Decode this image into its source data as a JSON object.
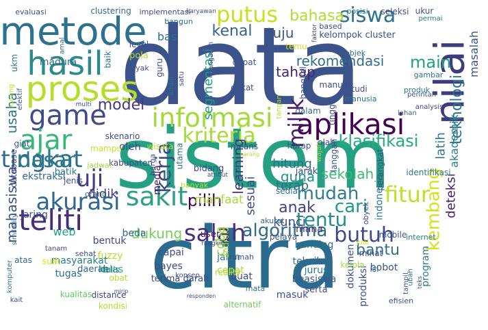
{
  "colors": {
    "background": "#ffffff",
    "palette": [
      "#440154",
      "#482878",
      "#3e4a89",
      "#31688e",
      "#26828e",
      "#1f9e89",
      "#35b779",
      "#6ece58",
      "#b5de2b",
      "#fde725"
    ]
  },
  "words": [
    {
      "text": "sistem",
      "color": "#26a083"
    },
    {
      "text": "data",
      "color": "#3b528b"
    },
    {
      "text": "citra",
      "color": "#2a6b8e"
    },
    {
      "text": "metode",
      "color": "#2c718e"
    },
    {
      "text": "hasil",
      "color": "#2c8a8c"
    },
    {
      "text": "proses",
      "color": "#b5de2b"
    },
    {
      "text": "nilai",
      "color": "#3b3d7e"
    },
    {
      "text": "aplikasi",
      "color": "#440154"
    },
    {
      "text": "game",
      "color": "#3e4a89"
    },
    {
      "text": "informasi",
      "color": "#a2da37"
    },
    {
      "text": "ajar",
      "color": "#37b878"
    },
    {
      "text": "teliti",
      "color": "#472c7a"
    },
    {
      "text": "tingkat",
      "color": "#2e6e8e"
    },
    {
      "text": "akurasi",
      "color": "#31688e"
    },
    {
      "text": "sakit",
      "color": "#2e9d8a"
    },
    {
      "text": "salah",
      "color": "#472d7b"
    },
    {
      "text": "uji",
      "color": "#443b84"
    },
    {
      "text": "dasar",
      "color": "#2a768e"
    },
    {
      "text": "putus",
      "color": "#c8e020"
    },
    {
      "text": "siswa",
      "color": "#2c728e"
    },
    {
      "text": "kerja",
      "color": "#3e4989"
    },
    {
      "text": "milik",
      "color": "#48186a"
    },
    {
      "text": "kriteria",
      "color": "#a5db36"
    },
    {
      "text": "butuh",
      "color": "#3f4788"
    },
    {
      "text": "fitur",
      "color": "#c2df23"
    },
    {
      "text": "tentu",
      "color": "#228c8d"
    },
    {
      "text": "algoritma",
      "color": "#2f6b8e"
    },
    {
      "text": "pilih",
      "color": "#440154"
    },
    {
      "text": "mudah",
      "color": "#2c7e8e"
    },
    {
      "text": "cari",
      "color": "#1f978b"
    },
    {
      "text": "kembang",
      "color": "#d5e21a"
    },
    {
      "text": "klasifikasi",
      "color": "#25ab82"
    },
    {
      "text": "model",
      "color": "#453781"
    },
    {
      "text": "bahasa",
      "color": "#b0dd2f"
    },
    {
      "text": "kenal",
      "color": "#32648e"
    },
    {
      "text": "tuju",
      "color": "#3b528b"
    },
    {
      "text": "main",
      "color": "#1fa187"
    },
    {
      "text": "rekomendasi",
      "color": "#2f6c8e"
    },
    {
      "text": "tahap",
      "color": "#482576"
    },
    {
      "text": "teknologi",
      "color": "#2b748e"
    },
    {
      "text": "akademik",
      "color": "#26818e"
    },
    {
      "text": "masalah",
      "color": "#3b528b"
    },
    {
      "text": "dukung",
      "color": "#75d054"
    },
    {
      "text": "bantu",
      "color": "#2d718e"
    },
    {
      "text": "guna",
      "color": "#20928c"
    },
    {
      "text": "sekolah",
      "color": "#3aba76"
    },
    {
      "text": "hitung",
      "color": "#2e6f8e"
    },
    {
      "text": "terap",
      "color": "#306a8e"
    },
    {
      "text": "learning",
      "color": "#46337f"
    },
    {
      "text": "sesuai",
      "color": "#3e4c8a"
    },
    {
      "text": "segmentasi",
      "color": "#1f998a"
    },
    {
      "text": "anak",
      "color": "#424086"
    },
    {
      "text": "kunci",
      "color": "#3b528b"
    },
    {
      "text": "manfaat",
      "color": "#a8db34"
    },
    {
      "text": "coba",
      "color": "#a0da39"
    },
    {
      "text": "latih",
      "color": "#2c738e"
    },
    {
      "text": "deteksi",
      "color": "#481a6c"
    },
    {
      "text": "usaha",
      "color": "#2b758e"
    },
    {
      "text": "mahasiswa",
      "color": "#3b528b"
    },
    {
      "text": "web",
      "color": "#1fa287"
    },
    {
      "text": "didik",
      "color": "#443983"
    },
    {
      "text": "media",
      "color": "#481668"
    },
    {
      "text": "madura",
      "color": "#2f6b8e"
    },
    {
      "text": "bas",
      "color": "#2d708e"
    },
    {
      "text": "ekstraksi",
      "color": "#31668e"
    },
    {
      "text": "oleh",
      "color": "#3f4889"
    },
    {
      "text": "jaring",
      "color": "#3b528b"
    },
    {
      "text": "bentuk",
      "color": "#3e4a89"
    },
    {
      "text": "fuzzy",
      "color": "#b2dd2d"
    },
    {
      "text": "tugas",
      "color": "#2e6e8e"
    },
    {
      "text": "masyarakat",
      "color": "#287d8e"
    },
    {
      "text": "kelas",
      "color": "#27ad81"
    },
    {
      "text": "kualitas",
      "color": "#5cc863"
    },
    {
      "text": "distance",
      "color": "#3e4989"
    },
    {
      "text": "dokumen",
      "color": "#3b528b"
    },
    {
      "text": "indonesia",
      "color": "#2a788e"
    },
    {
      "text": "banding",
      "color": "#2d708e"
    },
    {
      "text": "mana",
      "color": "#472c7a"
    },
    {
      "text": "jalan",
      "color": "#2c728e"
    },
    {
      "text": "buat",
      "color": "#3e4a89"
    },
    {
      "text": "teknik",
      "color": "#31688e"
    },
    {
      "text": "jurus",
      "color": "#2a788e"
    },
    {
      "text": "bobot",
      "color": "#3b528b"
    },
    {
      "text": "bayes",
      "color": "#3e4a89"
    },
    {
      "text": "daerah",
      "color": "#31688e"
    },
    {
      "text": "terima darah",
      "color": "#3e4989"
    },
    {
      "text": "cepat",
      "color": "#aadc32"
    },
    {
      "text": "beasiswa",
      "color": "#38588c"
    },
    {
      "text": "beda",
      "color": "#31688e"
    },
    {
      "text": "capai",
      "color": "#3e4a89"
    },
    {
      "text": "program",
      "color": "#2a788e"
    },
    {
      "text": "produksi",
      "color": "#3b528b"
    },
    {
      "text": "kelola",
      "color": "#9bd93c"
    },
    {
      "text": "serta",
      "color": "#3e4a89"
    },
    {
      "text": "user",
      "color": "#481b6d"
    },
    {
      "text": "reality",
      "color": "#b5de2b"
    },
    {
      "text": "masuk",
      "color": "#3b528b"
    },
    {
      "text": "alternatif",
      "color": "#6ccd5a"
    },
    {
      "text": "kondisi",
      "color": "#b5de2b"
    },
    {
      "text": "efisien",
      "color": "#3b528b"
    },
    {
      "text": "komputer",
      "color": "#2c728e"
    },
    {
      "text": "kait",
      "color": "#3b528b"
    },
    {
      "text": "sulit",
      "color": "#d8e219"
    },
    {
      "text": "atas",
      "color": "#31688e"
    },
    {
      "text": "tanam",
      "color": "#3e4a89"
    },
    {
      "text": "similarity",
      "color": "#2c728e"
    },
    {
      "text": "sehat",
      "color": "#3b528b"
    },
    {
      "text": "tulis",
      "color": "#2a788e"
    },
    {
      "text": "obat",
      "color": "#b5de2b"
    },
    {
      "text": "rangking",
      "color": "#3e4a89"
    },
    {
      "text": "pelaya",
      "color": "#3b528b"
    },
    {
      "text": "juai",
      "color": "#d5e21a"
    },
    {
      "text": "android",
      "color": "#a0da39"
    },
    {
      "text": "akurat",
      "color": "#31688e"
    },
    {
      "text": "obyek",
      "color": "#3e4a89"
    },
    {
      "text": "mobile",
      "color": "#3b528b"
    },
    {
      "text": "internet",
      "color": "#2a788e"
    },
    {
      "text": "minat",
      "color": "#3e4a89"
    },
    {
      "text": "isi",
      "color": "#31688e"
    },
    {
      "text": "rumah",
      "color": "#3b528b"
    },
    {
      "text": "mata",
      "color": "#2c728e"
    },
    {
      "text": "konsep",
      "color": "#3e4a89"
    },
    {
      "text": "batik",
      "color": "#2a788e"
    },
    {
      "text": "jenis",
      "color": "#3b528b"
    },
    {
      "text": "orang",
      "color": "#31688e"
    },
    {
      "text": "bidang",
      "color": "#3e4a89"
    },
    {
      "text": "atribut",
      "color": "#3b528b"
    },
    {
      "text": "sedia",
      "color": "#2c728e"
    },
    {
      "text": "jarak",
      "color": "#3e4a89"
    },
    {
      "text": "perangkat",
      "color": "#3b528b"
    },
    {
      "text": "identifikasi",
      "color": "#2a788e"
    },
    {
      "text": "kabupaten",
      "color": "#3e4a89"
    },
    {
      "text": "harga",
      "color": "#3b528b"
    },
    {
      "text": "mampu",
      "color": "#c8e020"
    },
    {
      "text": "wisata",
      "color": "#b5de2b"
    },
    {
      "text": "jadwal",
      "color": "#a5db36"
    },
    {
      "text": "skenario",
      "color": "#3e4a89"
    },
    {
      "text": "evaluasi",
      "color": "#3b528b"
    },
    {
      "text": "clustering",
      "color": "#31688e"
    },
    {
      "text": "implementasi",
      "color": "#3e4a89"
    },
    {
      "text": "karyawan",
      "color": "#3b528b"
    },
    {
      "text": "posisi",
      "color": "#2c728e"
    },
    {
      "text": "seleksi",
      "color": "#3e4a89"
    },
    {
      "text": "ukur",
      "color": "#3b528b"
    },
    {
      "text": "permai",
      "color": "#2a788e"
    },
    {
      "text": "based",
      "color": "#3e4a89"
    },
    {
      "text": "kelompok cluster",
      "color": "#3b528b"
    },
    {
      "text": "bangun",
      "color": "#31688e"
    },
    {
      "text": "temu",
      "color": "#d5e21a"
    },
    {
      "text": "level",
      "color": "#3e4a89"
    },
    {
      "text": "pola",
      "color": "#b5de2b"
    },
    {
      "text": "baik",
      "color": "#2c728e"
    },
    {
      "text": "layak",
      "color": "#3b528b"
    },
    {
      "text": "guru",
      "color": "#3e4a89"
    },
    {
      "text": "dapat",
      "color": "#3b528b"
    },
    {
      "text": "objek",
      "color": "#31688e"
    },
    {
      "text": "gambar",
      "color": "#2c728e"
    },
    {
      "text": "manual",
      "color": "#3e4a89"
    },
    {
      "text": "studi",
      "color": "#3b528b"
    },
    {
      "text": "produk",
      "color": "#2a788e"
    },
    {
      "text": "perintah",
      "color": "#3b528b"
    },
    {
      "text": "manusia",
      "color": "#2c728e"
    },
    {
      "text": "analysis",
      "color": "#3e4a89"
    },
    {
      "text": "dekat",
      "color": "#3b528b"
    },
    {
      "text": "dalam",
      "color": "#31688e"
    },
    {
      "text": "tinggi",
      "color": "#3e4a89"
    },
    {
      "text": "bangkal",
      "color": "#3b528b"
    },
    {
      "text": "ambil",
      "color": "#2c728e"
    },
    {
      "text": "satu",
      "color": "#3e4a89"
    },
    {
      "text": "pengaruh",
      "color": "#3b528b"
    },
    {
      "text": "tangan",
      "color": "#b5de2b"
    },
    {
      "text": "lahan",
      "color": "#31688e"
    },
    {
      "text": "olah",
      "color": "#3e4a89"
    },
    {
      "text": "wajah",
      "color": "#a0da39"
    },
    {
      "text": "langgan",
      "color": "#3b528b"
    },
    {
      "text": "means",
      "color": "#3e4a89"
    },
    {
      "text": "harap",
      "color": "#3b528b"
    },
    {
      "text": "barang",
      "color": "#b5de2b"
    },
    {
      "text": "sebab",
      "color": "#31688e"
    },
    {
      "text": "giat",
      "color": "#3b528b"
    },
    {
      "text": "database",
      "color": "#3e4a89"
    },
    {
      "text": "ukm",
      "color": "#2c728e"
    },
    {
      "text": "kurang",
      "color": "#b5de2b"
    },
    {
      "text": "efektif",
      "color": "#3b528b"
    },
    {
      "text": "amal",
      "color": "#31688e"
    },
    {
      "text": "faktor",
      "color": "#3e4a89"
    },
    {
      "text": "multi",
      "color": "#3b528b"
    },
    {
      "text": "utama",
      "color": "#2c728e"
    },
    {
      "text": "banyak",
      "color": "#b5de2b"
    },
    {
      "text": "mirip",
      "color": "#3e4a89"
    },
    {
      "text": "tampil",
      "color": "#3b528b"
    },
    {
      "text": "ubah",
      "color": "#31688e"
    },
    {
      "text": "responden",
      "color": "#3e4a89"
    },
    {
      "text": "teks",
      "color": "#3b528b"
    },
    {
      "text": "dunia",
      "color": "#b5de2b"
    }
  ]
}
